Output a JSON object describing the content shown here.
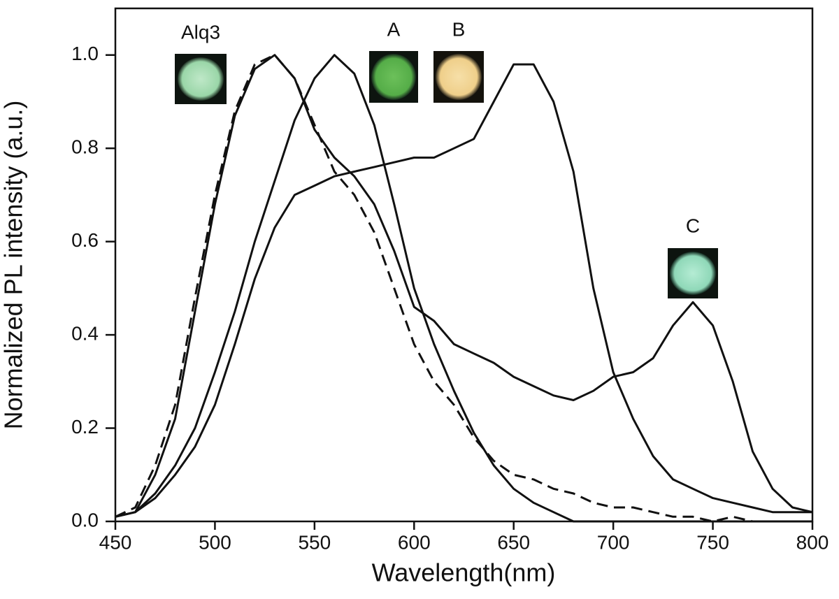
{
  "chart_data": {
    "type": "line",
    "xlabel": "Wavelength(nm)",
    "ylabel": "Normalized PL intensity (a.u.)",
    "x": [
      450,
      460,
      470,
      480,
      490,
      500,
      510,
      520,
      530,
      540,
      550,
      560,
      570,
      580,
      590,
      600,
      610,
      620,
      630,
      640,
      650,
      660,
      670,
      680,
      690,
      700,
      710,
      720,
      730,
      740,
      750,
      760,
      770,
      780,
      790,
      800
    ],
    "series": [
      {
        "color": "#111111",
        "line_style": "dashed",
        "values": [
          0.01,
          0.03,
          0.12,
          0.25,
          0.48,
          0.7,
          0.88,
          0.98,
          1.0,
          0.95,
          0.85,
          0.75,
          0.7,
          0.62,
          0.5,
          0.38,
          0.3,
          0.25,
          0.18,
          0.13,
          0.1,
          0.09,
          0.07,
          0.06,
          0.04,
          0.03,
          0.03,
          0.02,
          0.01,
          0.01,
          0.0,
          0.01,
          0.0,
          0.0,
          0.0,
          0.0
        ]
      },
      {
        "color": "#111111",
        "line_style": "solid",
        "values": [
          0.01,
          0.02,
          0.1,
          0.22,
          0.45,
          0.68,
          0.87,
          0.97,
          1.0,
          0.95,
          0.84,
          0.78,
          0.74,
          0.68,
          0.58,
          0.46,
          0.43,
          0.38,
          0.36,
          0.34,
          0.31,
          0.29,
          0.27,
          0.26,
          0.28,
          0.31,
          0.32,
          0.35,
          0.42,
          0.47,
          0.42,
          0.3,
          0.15,
          0.07,
          0.03,
          0.02
        ]
      },
      {
        "color": "#111111",
        "line_style": "solid",
        "values": [
          0.01,
          0.02,
          0.06,
          0.12,
          0.2,
          0.32,
          0.45,
          0.6,
          0.73,
          0.86,
          0.95,
          1.0,
          0.96,
          0.85,
          0.68,
          0.5,
          0.38,
          0.28,
          0.19,
          0.12,
          0.07,
          0.04,
          0.02,
          0.0,
          0.0,
          0.0,
          0.0,
          0.0,
          0.0,
          0.0,
          0.0,
          0.0,
          0.0,
          0.0,
          0.0,
          0.0
        ]
      },
      {
        "color": "#111111",
        "line_style": "solid",
        "values": [
          0.01,
          0.02,
          0.05,
          0.1,
          0.16,
          0.25,
          0.38,
          0.52,
          0.63,
          0.7,
          0.72,
          0.74,
          0.75,
          0.76,
          0.77,
          0.78,
          0.78,
          0.8,
          0.82,
          0.9,
          0.98,
          0.98,
          0.9,
          0.75,
          0.5,
          0.32,
          0.22,
          0.14,
          0.09,
          0.07,
          0.05,
          0.04,
          0.03,
          0.02,
          0.02,
          0.02
        ]
      }
    ],
    "xlim": [
      450,
      800
    ],
    "xticks": [
      450,
      500,
      550,
      600,
      650,
      700,
      750,
      800
    ],
    "ylim": [
      0,
      1.1
    ],
    "yticks": [
      {
        "value": 0,
        "label": "0.0"
      },
      0.2,
      0.4,
      0.6,
      0.8,
      {
        "value": 1,
        "label": "1.0"
      }
    ],
    "annotations": [
      "Alq3",
      "A",
      "B",
      "C"
    ],
    "grid": false
  }
}
